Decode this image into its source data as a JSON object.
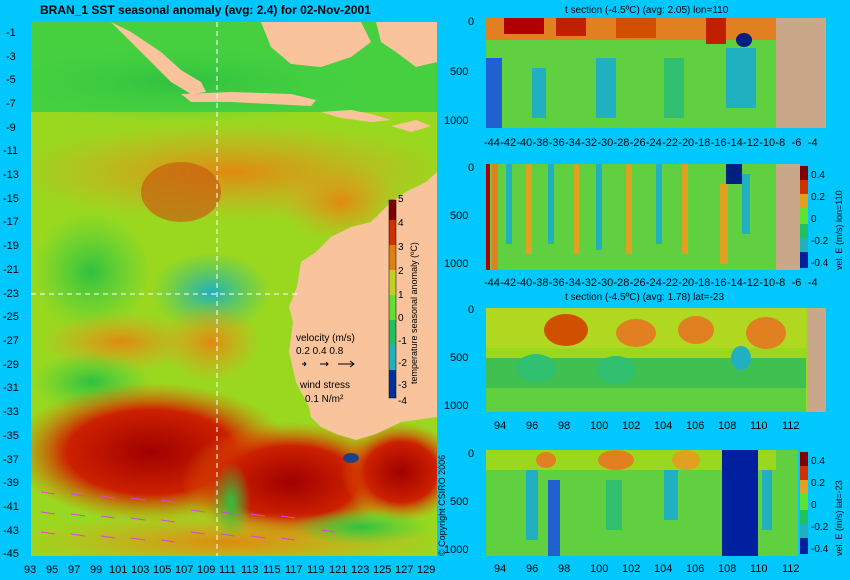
{
  "map": {
    "title": "BRAN_1 SST seasonal anomaly (avg: 2.4) for 02-Nov-2001",
    "lat_ticks": [
      "-1",
      "-3",
      "-5",
      "-7",
      "-9",
      "-11",
      "-13",
      "-15",
      "-17",
      "-19",
      "-21",
      "-23",
      "-25",
      "-27",
      "-29",
      "-31",
      "-33",
      "-35",
      "-37",
      "-39",
      "-41",
      "-43",
      "-45"
    ],
    "lon_ticks": [
      "93",
      "95",
      "97",
      "99",
      "101",
      "103",
      "105",
      "107",
      "109",
      "111",
      "113",
      "115",
      "117",
      "119",
      "121",
      "123",
      "125",
      "127",
      "129"
    ],
    "colorbar": {
      "label": "temperature seasonal anomaly (ºC)",
      "ticks": [
        "5",
        "4",
        "3",
        "2",
        "1",
        "0",
        "-1",
        "-2",
        "-3",
        "-4"
      ]
    },
    "velocity_legend": {
      "title": "velocity (m/s)",
      "values": "0.2 0.4 0.8"
    },
    "wind_legend": {
      "title": "wind stress",
      "value": "0.1 N/m²"
    },
    "copyright": "© Copyright CSIRO 2006",
    "colors": {
      "land": "#f9c49b",
      "background": "#00c8ff"
    }
  },
  "panels": [
    {
      "title": "t section (-4.5ºC) (avg: 2.05) lon=110",
      "x_ticks": [
        "-44",
        "-42",
        "-40",
        "-38",
        "-36",
        "-34",
        "-32",
        "-30",
        "-28",
        "-26",
        "-24",
        "-22",
        "-20",
        "-18",
        "-16",
        "-14",
        "-12",
        "-10",
        "-8",
        "-6",
        "-4"
      ],
      "y_ticks": [
        "0",
        "500",
        "1000"
      ],
      "colorbar": null
    },
    {
      "title": "",
      "x_ticks": [
        "-44",
        "-42",
        "-40",
        "-38",
        "-36",
        "-34",
        "-32",
        "-30",
        "-28",
        "-26",
        "-24",
        "-22",
        "-20",
        "-18",
        "-16",
        "-14",
        "-12",
        "-10",
        "-8",
        "-6",
        "-4"
      ],
      "y_ticks": [
        "0",
        "500",
        "1000"
      ],
      "colorbar": {
        "label": "vel. E (m/s) lon=110",
        "ticks": [
          "0.4",
          "0.2",
          "0",
          "-0.2",
          "-0.4"
        ]
      }
    },
    {
      "title": "t section (-4.5ºC) (avg: 1.78) lat=-23",
      "x_ticks": [
        "94",
        "96",
        "98",
        "100",
        "102",
        "104",
        "106",
        "108",
        "110",
        "112"
      ],
      "y_ticks": [
        "0",
        "500",
        "1000"
      ],
      "colorbar": null
    },
    {
      "title": "",
      "x_ticks": [
        "94",
        "96",
        "98",
        "100",
        "102",
        "104",
        "106",
        "108",
        "110",
        "112"
      ],
      "y_ticks": [
        "0",
        "500",
        "1000"
      ],
      "colorbar": {
        "label": "vel. E (m/s) lat=-23",
        "ticks": [
          "0.4",
          "0.2",
          "0",
          "-0.2",
          "-0.4"
        ]
      }
    }
  ]
}
